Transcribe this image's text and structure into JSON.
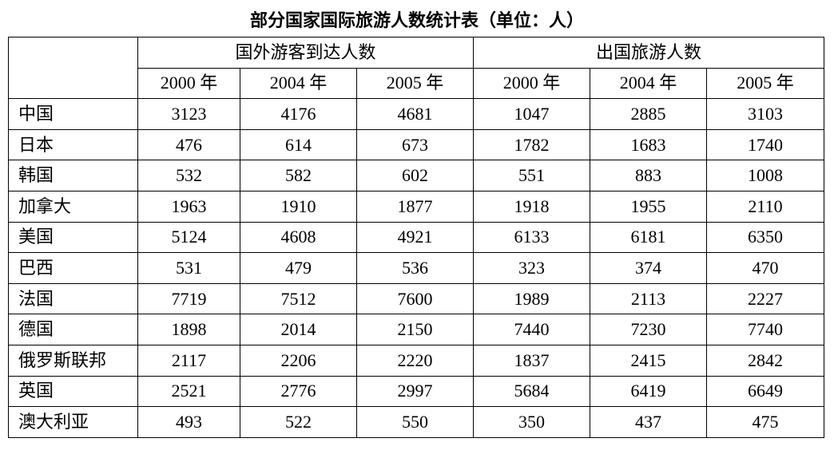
{
  "title": "部分国家国际旅游人数统计表（单位：人）",
  "table": {
    "groups": [
      "国外游客到达人数",
      "出国旅游人数"
    ],
    "years": [
      "2000 年",
      "2004 年",
      "2005 年",
      "2000 年",
      "2004 年",
      "2005 年"
    ],
    "rows": [
      [
        "中国",
        3123,
        4176,
        4681,
        1047,
        2885,
        3103
      ],
      [
        "日本",
        476,
        614,
        673,
        1782,
        1683,
        1740
      ],
      [
        "韩国",
        532,
        582,
        602,
        551,
        883,
        1008
      ],
      [
        "加拿大",
        1963,
        1910,
        1877,
        1918,
        1955,
        2110
      ],
      [
        "美国",
        5124,
        4608,
        4921,
        6133,
        6181,
        6350
      ],
      [
        "巴西",
        531,
        479,
        536,
        323,
        374,
        470
      ],
      [
        "法国",
        7719,
        7512,
        7600,
        1989,
        2113,
        2227
      ],
      [
        "德国",
        1898,
        2014,
        2150,
        7440,
        7230,
        7740
      ],
      [
        "俄罗斯联邦",
        2117,
        2206,
        2220,
        1837,
        2415,
        2842
      ],
      [
        "英国",
        2521,
        2776,
        2997,
        5684,
        6419,
        6649
      ],
      [
        "澳大利亚",
        493,
        522,
        550,
        350,
        437,
        475
      ]
    ]
  }
}
